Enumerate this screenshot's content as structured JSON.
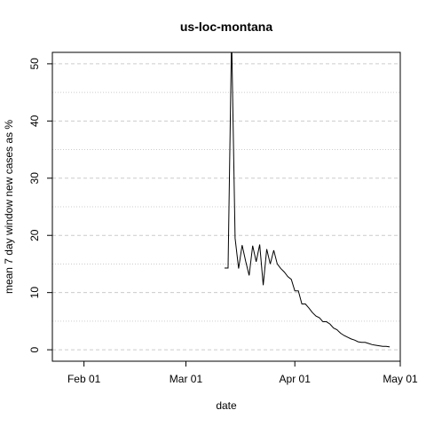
{
  "chart_data": {
    "type": "line",
    "title": "us-loc-montana",
    "xlabel": "date",
    "ylabel": "mean  7  day window new cases as %",
    "x_axis": {
      "type": "date",
      "range": [
        "2020-01-23",
        "2020-05-01"
      ],
      "ticks": [
        {
          "date": "2020-02-01",
          "label": "Feb 01"
        },
        {
          "date": "2020-03-01",
          "label": "Mar 01"
        },
        {
          "date": "2020-04-01",
          "label": "Apr 01"
        },
        {
          "date": "2020-05-01",
          "label": "May 01"
        }
      ]
    },
    "y_axis": {
      "range": [
        -2,
        52
      ],
      "ticks": [
        0,
        10,
        20,
        30,
        40,
        50
      ],
      "minor_gridlines": [
        5,
        15,
        25,
        35,
        45
      ]
    },
    "grid": true,
    "series": [
      {
        "points": [
          [
            "2020-03-12",
            14.3
          ],
          [
            "2020-03-13",
            14.3
          ],
          [
            "2020-03-14",
            55.0
          ],
          [
            "2020-03-15",
            19.5
          ],
          [
            "2020-03-16",
            14.2
          ],
          [
            "2020-03-17",
            18.3
          ],
          [
            "2020-03-18",
            15.5
          ],
          [
            "2020-03-19",
            13.0
          ],
          [
            "2020-03-20",
            18.2
          ],
          [
            "2020-03-21",
            15.4
          ],
          [
            "2020-03-22",
            18.4
          ],
          [
            "2020-03-23",
            11.3
          ],
          [
            "2020-03-24",
            17.6
          ],
          [
            "2020-03-25",
            15.0
          ],
          [
            "2020-03-26",
            17.4
          ],
          [
            "2020-03-27",
            15.0
          ],
          [
            "2020-03-28",
            14.2
          ],
          [
            "2020-03-29",
            13.6
          ],
          [
            "2020-03-30",
            12.8
          ],
          [
            "2020-03-31",
            12.3
          ],
          [
            "2020-04-01",
            10.3
          ],
          [
            "2020-04-02",
            10.3
          ],
          [
            "2020-04-03",
            8.0
          ],
          [
            "2020-04-04",
            8.0
          ],
          [
            "2020-04-05",
            7.3
          ],
          [
            "2020-04-06",
            6.5
          ],
          [
            "2020-04-07",
            5.9
          ],
          [
            "2020-04-08",
            5.6
          ],
          [
            "2020-04-09",
            4.9
          ],
          [
            "2020-04-10",
            4.9
          ],
          [
            "2020-04-11",
            4.5
          ],
          [
            "2020-04-12",
            3.8
          ],
          [
            "2020-04-13",
            3.5
          ],
          [
            "2020-04-14",
            2.9
          ],
          [
            "2020-04-15",
            2.5
          ],
          [
            "2020-04-16",
            2.2
          ],
          [
            "2020-04-17",
            1.9
          ],
          [
            "2020-04-18",
            1.7
          ],
          [
            "2020-04-19",
            1.4
          ],
          [
            "2020-04-20",
            1.3
          ],
          [
            "2020-04-21",
            1.3
          ],
          [
            "2020-04-22",
            1.1
          ],
          [
            "2020-04-23",
            0.9
          ],
          [
            "2020-04-24",
            0.8
          ],
          [
            "2020-04-25",
            0.7
          ],
          [
            "2020-04-26",
            0.6
          ],
          [
            "2020-04-27",
            0.6
          ],
          [
            "2020-04-28",
            0.5
          ]
        ]
      }
    ]
  }
}
